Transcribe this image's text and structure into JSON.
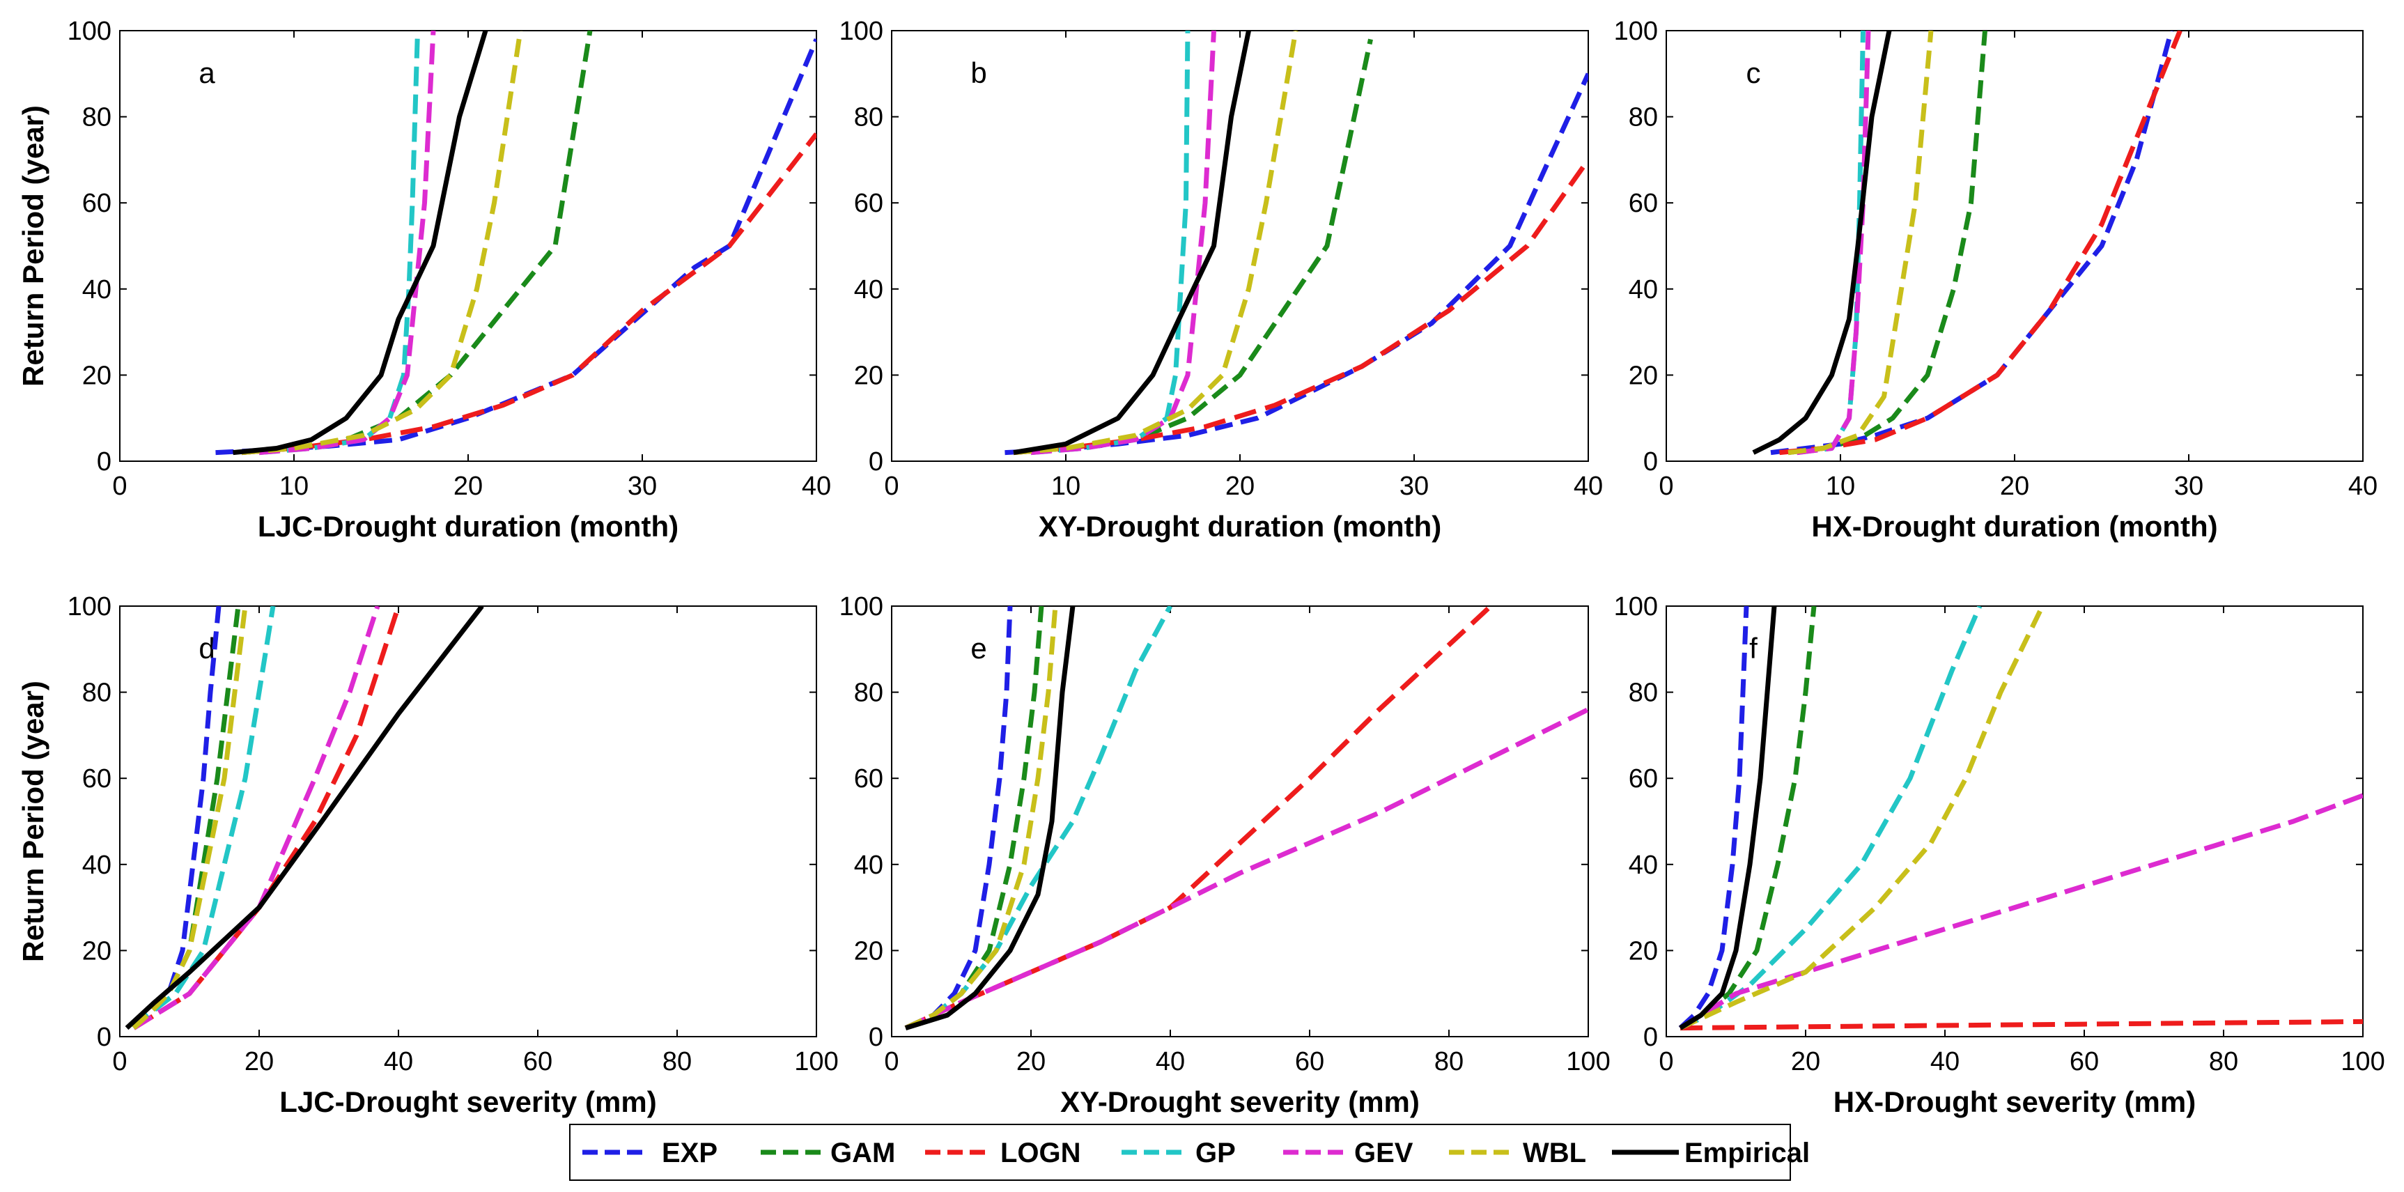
{
  "figure": {
    "ylabel_common": "Return Period (year)",
    "legend": {
      "entries": [
        {
          "key": "EXP",
          "label": "EXP",
          "color": "#1f1fe6",
          "dash": "dashed"
        },
        {
          "key": "GAM",
          "label": "GAM",
          "color": "#1a8a1a",
          "dash": "dashed"
        },
        {
          "key": "LOGN",
          "label": "LOGN",
          "color": "#ee1c1c",
          "dash": "dashed"
        },
        {
          "key": "GP",
          "label": "GP",
          "color": "#22c6c6",
          "dash": "dashed"
        },
        {
          "key": "GEV",
          "label": "GEV",
          "color": "#dd2bd0",
          "dash": "dashed"
        },
        {
          "key": "WBL",
          "label": "WBL",
          "color": "#c8bf1a",
          "dash": "dashed"
        },
        {
          "key": "Empirical",
          "label": "Empirical",
          "color": "#000000",
          "dash": "solid"
        }
      ]
    }
  },
  "chart_data": [
    {
      "type": "line",
      "panel": "a",
      "xlabel": "LJC-Drought duration (month)",
      "ylabel": "Return Period (year)",
      "xlim": [
        0,
        40
      ],
      "ylim": [
        0,
        100
      ],
      "xticks": [
        0,
        10,
        20,
        30,
        40
      ],
      "yticks": [
        0,
        20,
        40,
        60,
        80,
        100
      ],
      "series": [
        {
          "name": "EXP",
          "x": [
            5.5,
            8,
            12,
            16,
            20,
            26,
            33,
            35,
            40
          ],
          "y": [
            2,
            2.5,
            3.5,
            5,
            10,
            20,
            45,
            50,
            98
          ]
        },
        {
          "name": "GAM",
          "x": [
            7,
            10,
            13,
            16,
            19,
            21,
            23,
            25,
            27
          ],
          "y": [
            2,
            3,
            5,
            10,
            20,
            30,
            40,
            50,
            100
          ]
        },
        {
          "name": "LOGN",
          "x": [
            7,
            10,
            14,
            18,
            22,
            26,
            30,
            35,
            40
          ],
          "y": [
            2,
            3,
            5,
            8,
            13,
            20,
            35,
            50,
            76
          ]
        },
        {
          "name": "GP",
          "x": [
            8,
            11,
            14,
            15.5,
            16.3,
            16.6,
            16.8,
            17.1
          ],
          "y": [
            2,
            3,
            5,
            10,
            20,
            40,
            60,
            100
          ]
        },
        {
          "name": "GEV",
          "x": [
            8,
            11,
            14,
            15.5,
            16.5,
            17,
            17.5,
            18
          ],
          "y": [
            2,
            3,
            5,
            10,
            20,
            40,
            60,
            100
          ]
        },
        {
          "name": "WBL",
          "x": [
            7,
            10,
            14,
            17,
            19,
            20.5,
            21.5,
            23
          ],
          "y": [
            2,
            3,
            6,
            12,
            20,
            40,
            60,
            100
          ]
        },
        {
          "name": "Empirical",
          "x": [
            6.5,
            9,
            11,
            13,
            15,
            16,
            18,
            19.5,
            21
          ],
          "y": [
            2,
            3,
            5,
            10,
            20,
            33,
            50,
            80,
            100
          ]
        }
      ]
    },
    {
      "type": "line",
      "panel": "b",
      "xlabel": "XY-Drought duration (month)",
      "ylabel": "",
      "xlim": [
        0,
        40
      ],
      "ylim": [
        0,
        100
      ],
      "xticks": [
        0,
        10,
        20,
        30,
        40
      ],
      "yticks": [
        0,
        20,
        40,
        60,
        80,
        100
      ],
      "series": [
        {
          "name": "EXP",
          "x": [
            6.5,
            9,
            13,
            17,
            21,
            27,
            31,
            35.5,
            40
          ],
          "y": [
            2,
            2.5,
            4,
            6,
            10,
            22,
            32,
            50,
            90
          ]
        },
        {
          "name": "GAM",
          "x": [
            7,
            10,
            14,
            17,
            20,
            22.5,
            25,
            27.5
          ],
          "y": [
            2,
            3,
            5,
            10,
            20,
            35,
            50,
            98
          ]
        },
        {
          "name": "LOGN",
          "x": [
            7,
            10,
            14,
            18,
            22,
            27,
            32,
            36.5,
            40
          ],
          "y": [
            2,
            3,
            5,
            8,
            13,
            22,
            35,
            50,
            70
          ]
        },
        {
          "name": "GP",
          "x": [
            8,
            11,
            14,
            15.8,
            16.3,
            16.6,
            16.9,
            17
          ],
          "y": [
            2,
            3,
            5,
            10,
            20,
            40,
            60,
            100
          ]
        },
        {
          "name": "GEV",
          "x": [
            8,
            11,
            14,
            16,
            17,
            17.5,
            18,
            18.5
          ],
          "y": [
            2,
            3,
            5,
            10,
            20,
            40,
            60,
            100
          ]
        },
        {
          "name": "WBL",
          "x": [
            7,
            10,
            14,
            17,
            19,
            20.5,
            21.5,
            23.2
          ],
          "y": [
            2,
            3,
            6,
            12,
            20,
            40,
            60,
            100
          ]
        },
        {
          "name": "Empirical",
          "x": [
            7,
            10,
            13,
            15,
            16.5,
            18.5,
            19.5,
            20.5
          ],
          "y": [
            2,
            4,
            10,
            20,
            33,
            50,
            80,
            100
          ]
        }
      ]
    },
    {
      "type": "line",
      "panel": "c",
      "xlabel": "HX-Drought duration (month)",
      "ylabel": "",
      "xlim": [
        0,
        40
      ],
      "ylim": [
        0,
        100
      ],
      "xticks": [
        0,
        10,
        20,
        30,
        40
      ],
      "yticks": [
        0,
        20,
        40,
        60,
        80,
        100
      ],
      "series": [
        {
          "name": "EXP",
          "x": [
            6,
            8,
            10,
            12,
            15,
            19,
            22,
            25,
            27,
            29
          ],
          "y": [
            2,
            3,
            4,
            6,
            10,
            20,
            35,
            50,
            70,
            100
          ]
        },
        {
          "name": "GAM",
          "x": [
            7,
            9,
            11,
            13,
            15,
            16.5,
            17.5,
            18.3
          ],
          "y": [
            2,
            3,
            5,
            10,
            20,
            40,
            60,
            100
          ]
        },
        {
          "name": "LOGN",
          "x": [
            6.5,
            9,
            12,
            15,
            19,
            22,
            25,
            27,
            29.5
          ],
          "y": [
            2,
            3,
            5,
            10,
            20,
            35,
            55,
            75,
            100
          ]
        },
        {
          "name": "GP",
          "x": [
            7.5,
            9.5,
            10.5,
            10.9,
            11.1,
            11.3
          ],
          "y": [
            2,
            3,
            10,
            30,
            60,
            100
          ]
        },
        {
          "name": "GEV",
          "x": [
            7.5,
            9.5,
            10.5,
            10.9,
            11.3,
            11.6
          ],
          "y": [
            2,
            3,
            10,
            30,
            60,
            100
          ]
        },
        {
          "name": "WBL",
          "x": [
            7,
            9,
            11,
            12.5,
            13.5,
            14.3,
            15.2
          ],
          "y": [
            2,
            3,
            6,
            15,
            40,
            60,
            100
          ]
        },
        {
          "name": "Empirical",
          "x": [
            5,
            6.5,
            8,
            9.5,
            10.5,
            11,
            11.8,
            12.8
          ],
          "y": [
            2,
            5,
            10,
            20,
            33,
            50,
            80,
            100
          ]
        }
      ]
    },
    {
      "type": "line",
      "panel": "d",
      "xlabel": "LJC-Drought severity (mm)",
      "ylabel": "Return Period (year)",
      "xlim": [
        0,
        100
      ],
      "ylim": [
        0,
        100
      ],
      "xticks": [
        0,
        20,
        40,
        60,
        80,
        100
      ],
      "yticks": [
        0,
        20,
        40,
        60,
        80,
        100
      ],
      "series": [
        {
          "name": "EXP",
          "x": [
            2,
            4,
            7,
            9,
            10.5,
            12,
            13,
            14.2
          ],
          "y": [
            2,
            5,
            10,
            20,
            40,
            60,
            80,
            100
          ]
        },
        {
          "name": "GAM",
          "x": [
            2,
            4,
            7,
            10,
            12,
            14,
            15.5,
            17
          ],
          "y": [
            2,
            5,
            10,
            20,
            40,
            60,
            80,
            100
          ]
        },
        {
          "name": "LOGN",
          "x": [
            2,
            5,
            10,
            15,
            20,
            28,
            34,
            40
          ],
          "y": [
            2,
            5,
            10,
            20,
            30,
            50,
            70,
            100
          ]
        },
        {
          "name": "GP",
          "x": [
            2,
            4,
            8,
            12,
            15,
            18,
            20,
            22
          ],
          "y": [
            2,
            5,
            10,
            20,
            40,
            60,
            80,
            100
          ]
        },
        {
          "name": "GEV",
          "x": [
            2,
            5,
            10,
            15,
            20,
            28,
            33,
            37
          ],
          "y": [
            2,
            5,
            10,
            20,
            30,
            60,
            80,
            100
          ]
        },
        {
          "name": "WBL",
          "x": [
            2,
            4,
            7,
            10,
            12.5,
            15,
            16.5,
            18
          ],
          "y": [
            2,
            5,
            10,
            20,
            40,
            60,
            80,
            100
          ]
        },
        {
          "name": "Empirical",
          "x": [
            1,
            5,
            10,
            20,
            29,
            40,
            52
          ],
          "y": [
            2,
            8,
            15,
            30,
            50,
            75,
            100
          ]
        }
      ]
    },
    {
      "type": "line",
      "panel": "e",
      "xlabel": "XY-Drought severity (mm)",
      "ylabel": "",
      "xlim": [
        0,
        100
      ],
      "ylim": [
        0,
        100
      ],
      "xticks": [
        0,
        20,
        40,
        60,
        80,
        100
      ],
      "yticks": [
        0,
        20,
        40,
        60,
        80,
        100
      ],
      "series": [
        {
          "name": "EXP",
          "x": [
            2,
            6,
            9,
            12,
            14,
            15.5,
            16.5,
            17
          ],
          "y": [
            2,
            5,
            10,
            20,
            40,
            60,
            80,
            100
          ]
        },
        {
          "name": "GAM",
          "x": [
            2,
            6,
            10,
            14,
            17,
            19,
            20.5,
            21.5
          ],
          "y": [
            2,
            5,
            10,
            20,
            40,
            60,
            80,
            100
          ]
        },
        {
          "name": "LOGN",
          "x": [
            2,
            10,
            20,
            30,
            40,
            52,
            60,
            70,
            78,
            86
          ],
          "y": [
            2,
            8,
            15,
            22,
            30,
            48,
            60,
            76,
            88,
            100
          ]
        },
        {
          "name": "GP",
          "x": [
            2,
            6,
            10,
            15,
            20,
            26,
            30,
            35,
            40
          ],
          "y": [
            2,
            5,
            10,
            20,
            35,
            50,
            65,
            85,
            100
          ]
        },
        {
          "name": "GEV",
          "x": [
            2,
            10,
            20,
            30,
            40,
            50,
            60,
            70,
            80,
            90,
            100
          ],
          "y": [
            2,
            8,
            15,
            22,
            30,
            38,
            45,
            52,
            60,
            68,
            76
          ]
        },
        {
          "name": "WBL",
          "x": [
            2,
            6,
            10,
            15,
            19,
            21,
            22.5,
            23.5
          ],
          "y": [
            2,
            5,
            10,
            20,
            40,
            60,
            80,
            100
          ]
        },
        {
          "name": "Empirical",
          "x": [
            2,
            8,
            12,
            17,
            21,
            23,
            24.5,
            26
          ],
          "y": [
            2,
            5,
            10,
            20,
            33,
            50,
            80,
            100
          ]
        }
      ]
    },
    {
      "type": "line",
      "panel": "f",
      "xlabel": "HX-Drought severity (mm)",
      "ylabel": "",
      "xlim": [
        0,
        100
      ],
      "ylim": [
        0,
        100
      ],
      "xticks": [
        0,
        20,
        40,
        60,
        80,
        100
      ],
      "yticks": [
        0,
        20,
        40,
        60,
        80,
        100
      ],
      "series": [
        {
          "name": "EXP",
          "x": [
            2,
            4,
            6,
            8,
            9.5,
            10.5,
            11.5
          ],
          "y": [
            2,
            5,
            10,
            20,
            40,
            60,
            100
          ]
        },
        {
          "name": "GAM",
          "x": [
            2,
            5,
            9,
            13,
            16,
            18.5,
            20,
            21.2
          ],
          "y": [
            2,
            5,
            10,
            20,
            40,
            60,
            80,
            100
          ]
        },
        {
          "name": "LOGN",
          "x": [
            2,
            20,
            40,
            60,
            80,
            100
          ],
          "y": [
            2,
            2.3,
            2.6,
            2.9,
            3.2,
            3.5
          ]
        },
        {
          "name": "GP",
          "x": [
            2,
            6,
            12,
            20,
            28,
            35,
            41,
            45
          ],
          "y": [
            2,
            5,
            12,
            25,
            40,
            60,
            85,
            100
          ]
        },
        {
          "name": "GEV",
          "x": [
            2,
            10,
            20,
            30,
            40,
            50,
            60,
            70,
            80,
            90,
            100
          ],
          "y": [
            2,
            10,
            15,
            20,
            25,
            30,
            35,
            40,
            45,
            50,
            56
          ]
        },
        {
          "name": "WBL",
          "x": [
            2,
            10,
            20,
            30,
            38,
            43,
            48,
            54
          ],
          "y": [
            2,
            8,
            15,
            30,
            45,
            60,
            80,
            100
          ]
        },
        {
          "name": "Empirical",
          "x": [
            2,
            5,
            8,
            10,
            12,
            13.5,
            14.5,
            15.5
          ],
          "y": [
            2,
            5,
            10,
            20,
            40,
            60,
            80,
            100
          ]
        }
      ]
    }
  ]
}
